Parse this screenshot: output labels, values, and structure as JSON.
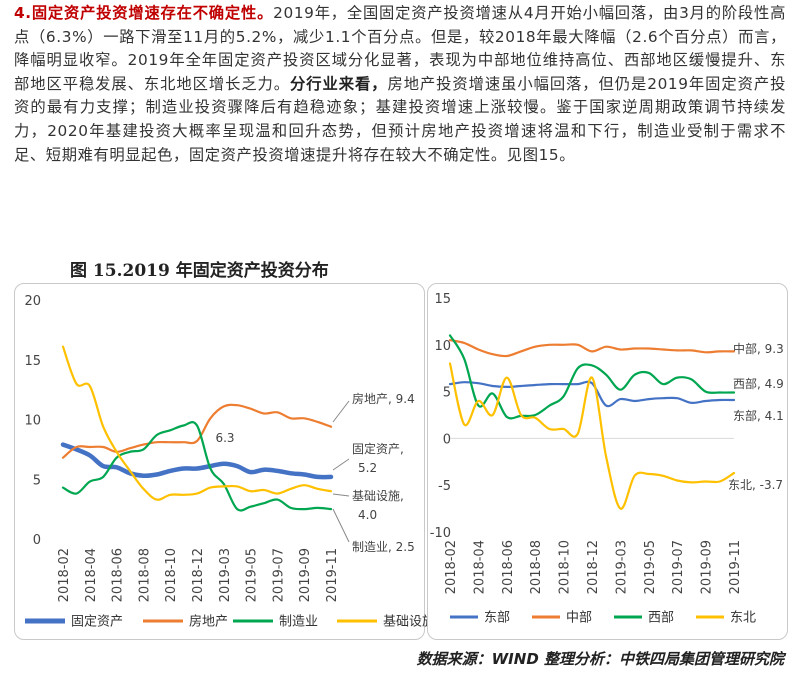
{
  "paragraph": {
    "heading": "4.固定资产投资增速存在不确定性。",
    "p1": "2019年，全国固定资产投资增速从4月开始小幅回落，由3月的阶段性高点（6.3%）一路下滑至11月的5.2%，减少1.1个百分点。但是，较2018年最大降幅（2.6个百分点）而言，降幅明显收窄。2019年全年固定资产投资区域分化显著，表现为中部地位维持高位、西部地区缓慢提升、东部地区平稳发展、东北地区增长乏力。",
    "bold2": "分行业来看，",
    "p2": "房地产投资增速虽小幅回落，但仍是2019年固定资产投资的最有力支撑；制造业投资骤降后有趋稳迹象；基建投资增速上涨较慢。鉴于国家逆周期政策调节持续发力，2020年基建投资大概率呈现温和回升态势，但预计房地产投资增速将温和下行，制造业受制于需求不足、短期难有明显起色，固定资产投资增速提升将存在较大不确定性。见图15。"
  },
  "figure_title": "图 15.2019 年固定资产投资分布",
  "source": "数据来源：WIND 整理分析：中铁四局集团管理研究院",
  "chart_data": [
    {
      "type": "line",
      "ylim": [
        0,
        20
      ],
      "yticks": [
        "0",
        "5",
        "10",
        "15",
        "20"
      ],
      "xticks": [
        "2018-02",
        "2018-04",
        "2018-06",
        "2018-08",
        "2018-10",
        "2018-12",
        "2019-03",
        "2019-05",
        "2019-07",
        "2019-09",
        "2019-11"
      ],
      "x": [
        "2018-02",
        "2018-03",
        "2018-04",
        "2018-05",
        "2018-06",
        "2018-07",
        "2018-08",
        "2018-09",
        "2018-10",
        "2018-11",
        "2018-12",
        "2019-02",
        "2019-03",
        "2019-04",
        "2019-05",
        "2019-06",
        "2019-07",
        "2019-08",
        "2019-09",
        "2019-10",
        "2019-11"
      ],
      "series": [
        {
          "name": "固定资产",
          "color": "#4472c4",
          "values": [
            7.9,
            7.5,
            7.0,
            6.1,
            6.0,
            5.5,
            5.3,
            5.4,
            5.7,
            5.9,
            5.9,
            6.1,
            6.3,
            6.1,
            5.6,
            5.8,
            5.7,
            5.5,
            5.4,
            5.2,
            5.2
          ]
        },
        {
          "name": "房地产",
          "color": "#ed7d31",
          "values": [
            6.8,
            7.7,
            7.7,
            7.7,
            7.3,
            7.6,
            7.9,
            8.1,
            8.1,
            8.1,
            8.2,
            10.1,
            11.1,
            11.2,
            10.9,
            10.5,
            10.6,
            10.1,
            10.1,
            9.8,
            9.4
          ]
        },
        {
          "name": "制造业",
          "color": "#00a650",
          "values": [
            4.3,
            3.8,
            4.8,
            5.2,
            6.8,
            7.3,
            7.5,
            8.7,
            9.1,
            9.5,
            9.5,
            5.9,
            4.6,
            2.5,
            2.7,
            3.0,
            3.3,
            2.6,
            2.5,
            2.6,
            2.5
          ]
        },
        {
          "name": "基础设施",
          "color": "#ffc000",
          "values": [
            16.1,
            13.0,
            12.8,
            9.4,
            7.3,
            5.7,
            4.2,
            3.3,
            3.7,
            3.7,
            3.8,
            4.3,
            4.4,
            4.4,
            4.0,
            4.1,
            3.8,
            4.2,
            4.5,
            4.2,
            4.0
          ]
        }
      ],
      "annotations": [
        {
          "text": "房地产, 9.4"
        },
        {
          "text": "6.3"
        },
        {
          "text": "固定资产,"
        },
        {
          "text": "5.2"
        },
        {
          "text": "基础设施,"
        },
        {
          "text": "4.0"
        },
        {
          "text": "制造业, 2.5"
        }
      ]
    },
    {
      "type": "line",
      "ylim": [
        -10,
        15
      ],
      "yticks": [
        "-10",
        "-5",
        "0",
        "5",
        "10",
        "15"
      ],
      "xticks": [
        "2018-02",
        "2018-04",
        "2018-06",
        "2018-08",
        "2018-10",
        "2018-12",
        "2019-03",
        "2019-05",
        "2019-07",
        "2019-09",
        "2019-11"
      ],
      "x": [
        "2018-02",
        "2018-03",
        "2018-04",
        "2018-05",
        "2018-06",
        "2018-07",
        "2018-08",
        "2018-09",
        "2018-10",
        "2018-11",
        "2018-12",
        "2019-02",
        "2019-03",
        "2019-04",
        "2019-05",
        "2019-06",
        "2019-07",
        "2019-08",
        "2019-09",
        "2019-10",
        "2019-11"
      ],
      "series": [
        {
          "name": "东部",
          "color": "#4472c4",
          "values": [
            5.8,
            6.0,
            5.9,
            5.6,
            5.5,
            5.6,
            5.7,
            5.8,
            5.8,
            5.8,
            5.9,
            3.5,
            4.2,
            4.0,
            4.2,
            4.3,
            4.3,
            3.8,
            4.0,
            4.1,
            4.1
          ]
        },
        {
          "name": "中部",
          "color": "#ed7d31",
          "values": [
            10.5,
            10.2,
            9.5,
            9.0,
            8.8,
            9.3,
            9.8,
            10.0,
            10.0,
            10.0,
            9.3,
            9.8,
            9.5,
            9.6,
            9.6,
            9.5,
            9.4,
            9.4,
            9.2,
            9.3,
            9.3
          ]
        },
        {
          "name": "西部",
          "color": "#00a650",
          "values": [
            11.0,
            8.5,
            3.5,
            4.8,
            2.3,
            2.4,
            2.5,
            3.5,
            4.5,
            7.5,
            7.8,
            6.8,
            5.2,
            6.8,
            7.0,
            5.8,
            6.5,
            6.3,
            5.0,
            4.9,
            4.9
          ]
        },
        {
          "name": "东北",
          "color": "#ffc000",
          "values": [
            8.0,
            1.5,
            4.0,
            2.5,
            6.5,
            2.5,
            2.2,
            1.0,
            1.0,
            0.5,
            6.5,
            -2.0,
            -7.5,
            -4.0,
            -3.8,
            -4.0,
            -4.5,
            -4.7,
            -4.6,
            -4.6,
            -3.7
          ]
        }
      ],
      "annotations": [
        {
          "text": "中部, 9.3"
        },
        {
          "text": "西部, 4.9"
        },
        {
          "text": "东部, 4.1"
        },
        {
          "text": "东北, -3.7"
        }
      ]
    }
  ]
}
